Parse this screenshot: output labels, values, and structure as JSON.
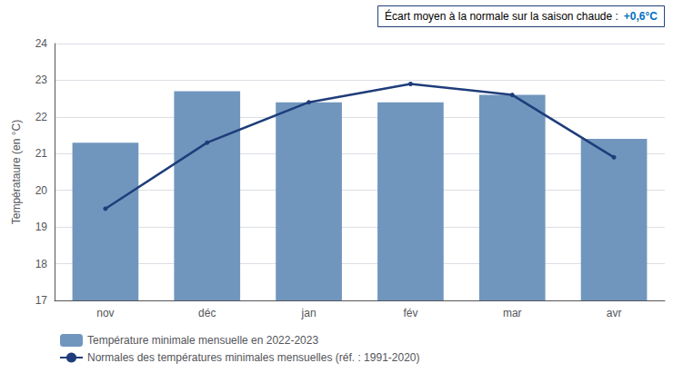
{
  "chart_data": {
    "type": "bar",
    "categories": [
      "nov",
      "déc",
      "jan",
      "fév",
      "mar",
      "avr"
    ],
    "series": [
      {
        "name": "Température minimale mensuelle en 2022-2023",
        "type": "bar",
        "color": "#7096be",
        "values": [
          21.3,
          22.7,
          22.4,
          22.4,
          22.6,
          21.4
        ]
      },
      {
        "name": "Normales des températures minimales mensuelles (réf. : 1991-2020)",
        "type": "line",
        "color": "#1f3d7a",
        "values": [
          19.5,
          21.3,
          22.4,
          22.9,
          22.6,
          20.9
        ]
      }
    ],
    "ylabel": "Températaure (en °C)",
    "ylim": [
      17,
      24
    ],
    "yticks": [
      17,
      18,
      19,
      20,
      21,
      22,
      23,
      24
    ],
    "grid": true,
    "legend": "bottom",
    "annotations": [
      {
        "text": "Écart moyen à la normale sur la saison chaude :"
      },
      {
        "text": "+0,6°C",
        "color": "#0070c0"
      }
    ]
  }
}
